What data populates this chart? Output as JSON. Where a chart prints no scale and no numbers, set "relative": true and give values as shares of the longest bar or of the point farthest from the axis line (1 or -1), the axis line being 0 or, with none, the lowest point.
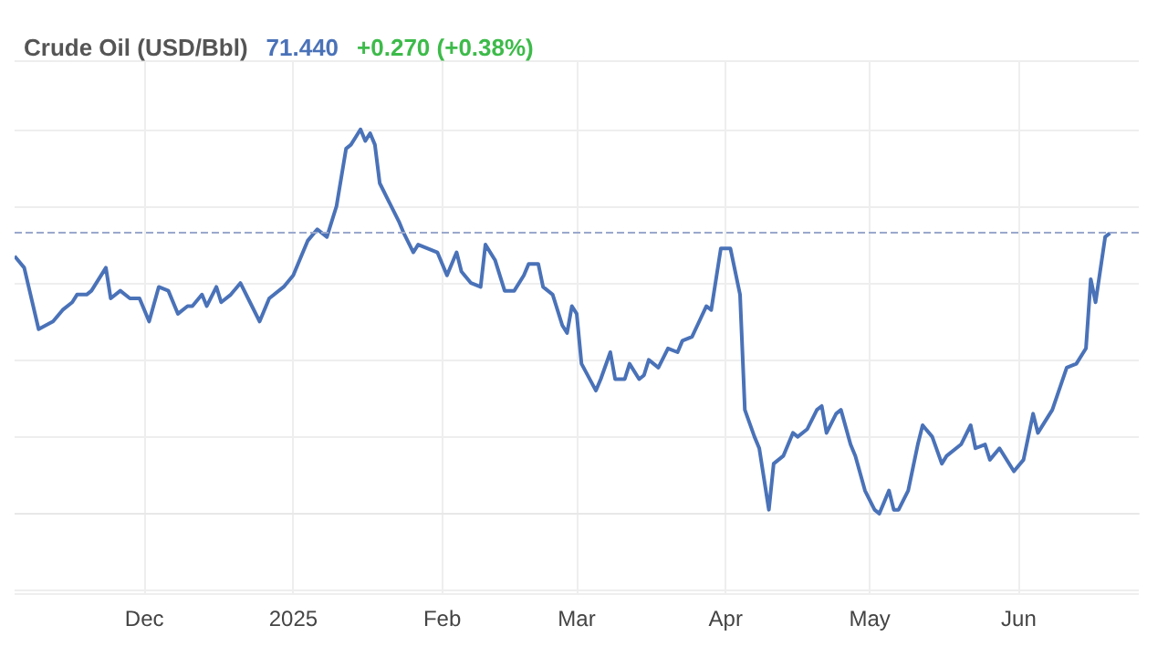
{
  "chart_data": {
    "type": "line",
    "title": "Crude Oil (USD/Bbl)",
    "annotations": [
      "71.440",
      "+0.270 (+0.38%)"
    ],
    "relative": true,
    "grid": true,
    "xlim": [
      "2024-11-04",
      "2025-06-26"
    ],
    "xticks": [
      {
        "value": "2024-12-01",
        "label": "Dec"
      },
      {
        "value": "2025-01-01",
        "label": "2025"
      },
      {
        "value": "2025-02-01",
        "label": "Feb"
      },
      {
        "value": "2025-03-01",
        "label": "Mar"
      },
      {
        "value": "2025-04-01",
        "label": "Apr"
      },
      {
        "value": "2025-05-01",
        "label": "May"
      },
      {
        "value": "2025-06-01",
        "label": "Jun"
      }
    ],
    "ref_lines": [
      {
        "axis": "y",
        "value": 0.73,
        "label": null,
        "color": "#9aa8cc",
        "line_style": "dashed"
      }
    ],
    "series": [
      {
        "color": "#4a72b8",
        "x": [
          "2024-11-04",
          "2024-11-06",
          "2024-11-09",
          "2024-11-12",
          "2024-11-14",
          "2024-11-16",
          "2024-11-17",
          "2024-11-19",
          "2024-11-20",
          "2024-11-23",
          "2024-11-24",
          "2024-11-26",
          "2024-11-28",
          "2024-11-30",
          "2024-12-02",
          "2024-12-04",
          "2024-12-06",
          "2024-12-08",
          "2024-12-10",
          "2024-12-11",
          "2024-12-13",
          "2024-12-14",
          "2024-12-16",
          "2024-12-17",
          "2024-12-19",
          "2024-12-21",
          "2024-12-23",
          "2024-12-25",
          "2024-12-27",
          "2024-12-30",
          "2025-01-01",
          "2025-01-03",
          "2025-01-04",
          "2025-01-06",
          "2025-01-08",
          "2025-01-10",
          "2025-01-12",
          "2025-01-13",
          "2025-01-14",
          "2025-01-15",
          "2025-01-16",
          "2025-01-17",
          "2025-01-18",
          "2025-01-19",
          "2025-01-21",
          "2025-01-23",
          "2025-01-24",
          "2025-01-26",
          "2025-01-27",
          "2025-01-29",
          "2025-01-31",
          "2025-02-02",
          "2025-02-04",
          "2025-02-05",
          "2025-02-07",
          "2025-02-09",
          "2025-02-10",
          "2025-02-12",
          "2025-02-14",
          "2025-02-16",
          "2025-02-18",
          "2025-02-19",
          "2025-02-21",
          "2025-02-22",
          "2025-02-24",
          "2025-02-26",
          "2025-02-27",
          "2025-02-28",
          "2025-03-01",
          "2025-03-02",
          "2025-03-05",
          "2025-03-06",
          "2025-03-08",
          "2025-03-09",
          "2025-03-11",
          "2025-03-12",
          "2025-03-14",
          "2025-03-15",
          "2025-03-16",
          "2025-03-18",
          "2025-03-20",
          "2025-03-22",
          "2025-03-23",
          "2025-03-25",
          "2025-03-28",
          "2025-03-29",
          "2025-03-31",
          "2025-04-02",
          "2025-04-04",
          "2025-04-05",
          "2025-04-07",
          "2025-04-08",
          "2025-04-10",
          "2025-04-11",
          "2025-04-13",
          "2025-04-15",
          "2025-04-16",
          "2025-04-18",
          "2025-04-20",
          "2025-04-21",
          "2025-04-22",
          "2025-04-24",
          "2025-04-25",
          "2025-04-27",
          "2025-04-28",
          "2025-04-30",
          "2025-05-02",
          "2025-05-03",
          "2025-05-05",
          "2025-05-06",
          "2025-05-07",
          "2025-05-09",
          "2025-05-11",
          "2025-05-12",
          "2025-05-14",
          "2025-05-16",
          "2025-05-17",
          "2025-05-20",
          "2025-05-22",
          "2025-05-23",
          "2025-05-25",
          "2025-05-26",
          "2025-05-28",
          "2025-05-31",
          "2025-06-02",
          "2025-06-04",
          "2025-06-05",
          "2025-06-08",
          "2025-06-11",
          "2025-06-13",
          "2025-06-15",
          "2025-06-16",
          "2025-06-17",
          "2025-06-19",
          "2025-06-20"
        ],
        "values": [
          0.67,
          0.64,
          0.48,
          0.5,
          0.53,
          0.55,
          0.57,
          0.57,
          0.58,
          0.64,
          0.56,
          0.58,
          0.56,
          0.56,
          0.5,
          0.59,
          0.58,
          0.52,
          0.54,
          0.54,
          0.57,
          0.54,
          0.59,
          0.55,
          0.57,
          0.6,
          0.55,
          0.5,
          0.56,
          0.59,
          0.62,
          0.68,
          0.71,
          0.74,
          0.72,
          0.8,
          0.95,
          0.96,
          0.98,
          1.0,
          0.97,
          0.99,
          0.96,
          0.86,
          0.81,
          0.76,
          0.73,
          0.68,
          0.7,
          0.69,
          0.68,
          0.62,
          0.68,
          0.63,
          0.6,
          0.59,
          0.7,
          0.66,
          0.58,
          0.58,
          0.62,
          0.65,
          0.65,
          0.59,
          0.57,
          0.49,
          0.47,
          0.54,
          0.52,
          0.39,
          0.32,
          0.35,
          0.42,
          0.35,
          0.35,
          0.39,
          0.35,
          0.36,
          0.4,
          0.38,
          0.43,
          0.42,
          0.45,
          0.46,
          0.54,
          0.53,
          0.69,
          0.69,
          0.57,
          0.27,
          0.2,
          0.17,
          0.01,
          0.13,
          0.15,
          0.21,
          0.2,
          0.22,
          0.27,
          0.28,
          0.21,
          0.26,
          0.27,
          0.18,
          0.15,
          0.06,
          0.01,
          0.0,
          0.06,
          0.01,
          0.01,
          0.06,
          0.18,
          0.23,
          0.2,
          0.13,
          0.15,
          0.18,
          0.23,
          0.17,
          0.18,
          0.14,
          0.17,
          0.11,
          0.14,
          0.26,
          0.21,
          0.27,
          0.38,
          0.39,
          0.43,
          0.61,
          0.55,
          0.72,
          0.73
        ]
      }
    ]
  }
}
